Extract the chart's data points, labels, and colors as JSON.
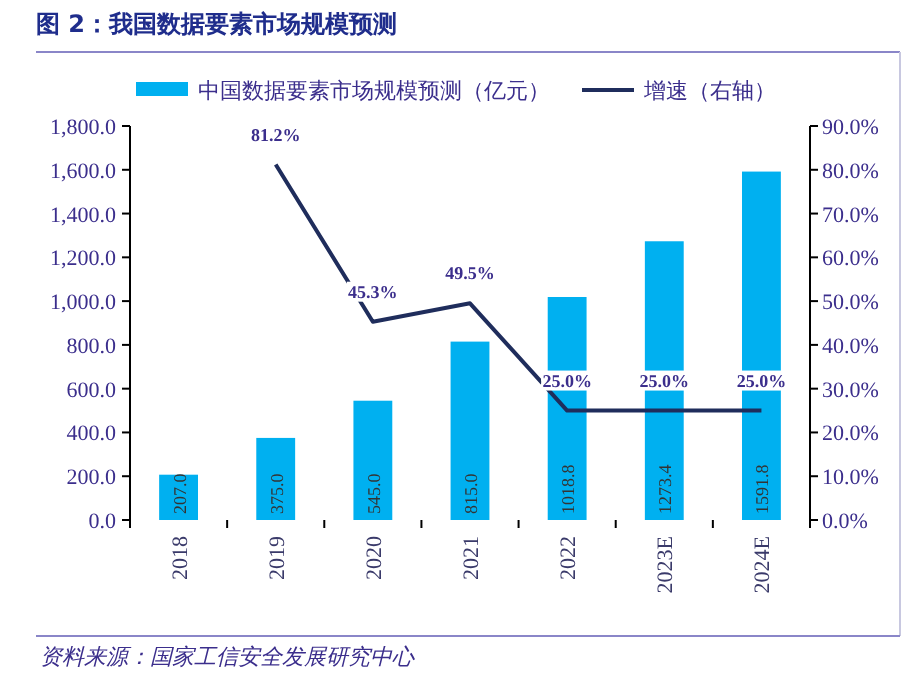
{
  "chart_data": {
    "type": "bar",
    "title": "图 2：我国数据要素市场规模预测",
    "categories": [
      "2018",
      "2019",
      "2020",
      "2021",
      "2022",
      "2023E",
      "2024E"
    ],
    "series": [
      {
        "name": "中国数据要素市场规模预测（亿元）",
        "color": "#00b0f0",
        "values": [
          207.0,
          375.0,
          545.0,
          815.0,
          1018.8,
          1273.4,
          1591.8
        ],
        "value_labels": [
          "207.0",
          "375.0",
          "545.0",
          "815.0",
          "1018.8",
          "1273.4",
          "1591.8"
        ]
      },
      {
        "name": "增速（右轴）",
        "color": "#1f2d5c",
        "type": "line",
        "axis": "y2",
        "values": [
          null,
          81.2,
          45.3,
          49.5,
          25.0,
          25.0,
          25.0
        ],
        "value_labels": [
          null,
          "81.2%",
          "45.3%",
          "49.5%",
          "25.0%",
          "25.0%",
          "25.0%"
        ]
      }
    ],
    "ylim": [
      0,
      1800
    ],
    "yticks": [
      {
        "value": 0,
        "label": "0.0"
      },
      {
        "value": 200,
        "label": "200.0"
      },
      {
        "value": 400,
        "label": "400.0"
      },
      {
        "value": 600,
        "label": "600.0"
      },
      {
        "value": 800,
        "label": "800.0"
      },
      {
        "value": 1000,
        "label": "1,000.0"
      },
      {
        "value": 1200,
        "label": "1,200.0"
      },
      {
        "value": 1400,
        "label": "1,400.0"
      },
      {
        "value": 1600,
        "label": "1,600.0"
      },
      {
        "value": 1800,
        "label": "1,800.0"
      }
    ],
    "y2lim": [
      0,
      90
    ],
    "y2ticks": [
      {
        "value": 0,
        "label": "0.0%"
      },
      {
        "value": 10,
        "label": "10.0%"
      },
      {
        "value": 20,
        "label": "20.0%"
      },
      {
        "value": 30,
        "label": "30.0%"
      },
      {
        "value": 40,
        "label": "40.0%"
      },
      {
        "value": 50,
        "label": "50.0%"
      },
      {
        "value": 60,
        "label": "60.0%"
      },
      {
        "value": 70,
        "label": "70.0%"
      },
      {
        "value": 80,
        "label": "80.0%"
      },
      {
        "value": 90,
        "label": "90.0%"
      }
    ],
    "legend": "top",
    "annotations": [
      "资料来源：国家工信安全发展研究中心"
    ]
  }
}
